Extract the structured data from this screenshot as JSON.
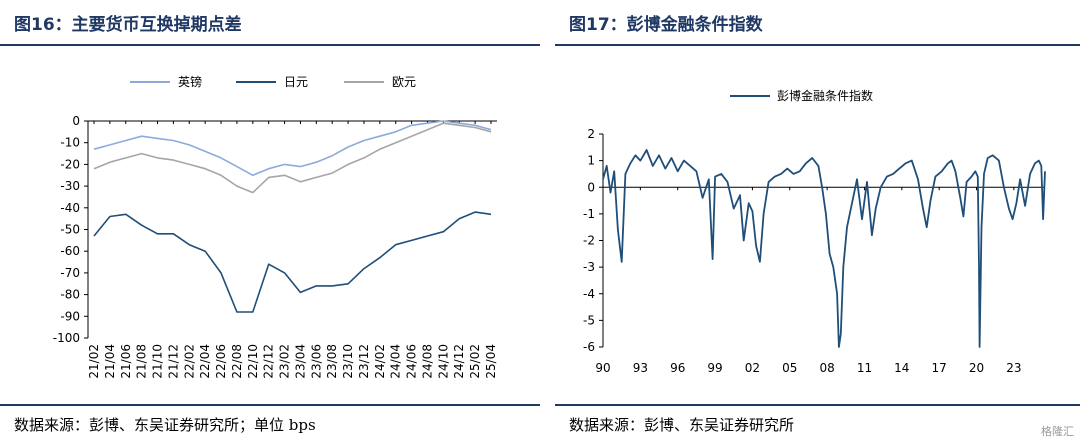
{
  "left_panel": {
    "title": "图16：主要货币互换掉期点差",
    "source": "数据来源：彭博、东吴证券研究所；单位 bps"
  },
  "right_panel": {
    "title": "图17：彭博金融条件指数",
    "source": "数据来源：彭博、东吴证券研究所"
  },
  "watermark": "格隆汇",
  "chart_data": [
    {
      "type": "line",
      "title": "",
      "ylim": [
        -100,
        0
      ],
      "yticks": [
        0,
        -10,
        -20,
        -30,
        -40,
        -50,
        -60,
        -70,
        -80,
        -90,
        -100
      ],
      "x_tick_labels": [
        "21/02",
        "21/04",
        "21/06",
        "21/08",
        "21/10",
        "21/12",
        "22/02",
        "22/04",
        "22/06",
        "22/08",
        "22/10",
        "22/12",
        "23/02",
        "23/04",
        "23/06",
        "23/08",
        "23/10",
        "23/12",
        "24/02",
        "24/04",
        "24/06",
        "24/08",
        "24/10",
        "24/12",
        "25/02",
        "25/04"
      ],
      "legend_position": "top-center",
      "colors": {
        "英镑": "#8eaadb",
        "日元": "#1f4e79",
        "欧元": "#a6a6a6"
      },
      "series": [
        {
          "name": "英镑",
          "values": [
            -13,
            -11,
            -9,
            -7,
            -8,
            -9,
            -11,
            -14,
            -17,
            -21,
            -25,
            -22,
            -20,
            -21,
            -19,
            -16,
            -12,
            -9,
            -7,
            -5,
            -2,
            -1,
            0,
            -1,
            -2,
            -4
          ]
        },
        {
          "name": "日元",
          "values": [
            -53,
            -44,
            -43,
            -48,
            -52,
            -52,
            -57,
            -60,
            -70,
            -88,
            -88,
            -66,
            -70,
            -79,
            -76,
            -76,
            -75,
            -68,
            -63,
            -57,
            -55,
            -53,
            -51,
            -45,
            -42,
            -43
          ]
        },
        {
          "name": "欧元",
          "values": [
            -22,
            -19,
            -17,
            -15,
            -17,
            -18,
            -20,
            -22,
            -25,
            -30,
            -33,
            -26,
            -25,
            -28,
            -26,
            -24,
            -20,
            -17,
            -13,
            -10,
            -7,
            -4,
            -1,
            -2,
            -3,
            -5
          ]
        }
      ]
    },
    {
      "type": "line",
      "title": "",
      "ylim": [
        -6,
        2
      ],
      "yticks": [
        2,
        1,
        0,
        -1,
        -2,
        -3,
        -4,
        -5,
        -6
      ],
      "x_tick_labels": [
        "90",
        "93",
        "96",
        "99",
        "02",
        "05",
        "08",
        "11",
        "14",
        "17",
        "20",
        "23"
      ],
      "xlim": [
        1990,
        2025.5
      ],
      "legend_position": "top-center",
      "colors": {
        "彭博金融条件指数": "#1f4e79"
      },
      "series": [
        {
          "name": "彭博金融条件指数",
          "x": [
            1990.0,
            1990.3,
            1990.6,
            1990.9,
            1991.2,
            1991.5,
            1991.8,
            1992.2,
            1992.6,
            1993.0,
            1993.5,
            1994.0,
            1994.5,
            1995.0,
            1995.5,
            1996.0,
            1996.5,
            1997.0,
            1997.5,
            1998.0,
            1998.5,
            1998.8,
            1999.0,
            1999.5,
            2000.0,
            2000.5,
            2001.0,
            2001.3,
            2001.7,
            2002.0,
            2002.3,
            2002.6,
            2002.9,
            2003.3,
            2003.8,
            2004.3,
            2004.8,
            2005.3,
            2005.8,
            2006.3,
            2006.8,
            2007.3,
            2007.6,
            2007.9,
            2008.2,
            2008.5,
            2008.8,
            2008.95,
            2009.1,
            2009.3,
            2009.6,
            2010.0,
            2010.4,
            2010.8,
            2011.2,
            2011.6,
            2011.9,
            2012.3,
            2012.8,
            2013.3,
            2013.8,
            2014.3,
            2014.8,
            2015.3,
            2015.7,
            2016.0,
            2016.3,
            2016.7,
            2017.2,
            2017.7,
            2018.0,
            2018.3,
            2018.7,
            2018.95,
            2019.2,
            2019.6,
            2019.9,
            2020.1,
            2020.2,
            2020.25,
            2020.4,
            2020.6,
            2020.9,
            2021.3,
            2021.8,
            2022.2,
            2022.6,
            2022.9,
            2023.2,
            2023.5,
            2023.9,
            2024.3,
            2024.7,
            2025.0,
            2025.2,
            2025.35,
            2025.5
          ],
          "values": [
            0.3,
            0.8,
            -0.2,
            0.6,
            -1.6,
            -2.8,
            0.5,
            0.9,
            1.2,
            1.0,
            1.4,
            0.8,
            1.2,
            0.7,
            1.1,
            0.6,
            1.0,
            0.8,
            0.6,
            -0.4,
            0.3,
            -2.7,
            0.4,
            0.5,
            0.2,
            -0.8,
            -0.3,
            -2.0,
            -0.6,
            -0.9,
            -2.2,
            -2.8,
            -1.0,
            0.2,
            0.4,
            0.5,
            0.7,
            0.5,
            0.6,
            0.9,
            1.1,
            0.8,
            0.0,
            -1.0,
            -2.5,
            -3.0,
            -4.0,
            -6.0,
            -5.5,
            -3.0,
            -1.5,
            -0.6,
            0.3,
            -1.2,
            0.2,
            -1.8,
            -0.8,
            0.0,
            0.4,
            0.5,
            0.7,
            0.9,
            1.0,
            0.3,
            -0.8,
            -1.5,
            -0.5,
            0.4,
            0.6,
            0.9,
            1.0,
            0.6,
            -0.4,
            -1.1,
            0.2,
            0.4,
            0.6,
            0.4,
            -3.0,
            -6.0,
            -1.5,
            0.5,
            1.1,
            1.2,
            1.0,
            0.0,
            -0.8,
            -1.2,
            -0.6,
            0.3,
            -0.7,
            0.5,
            0.9,
            1.0,
            0.8,
            -1.2,
            0.6
          ]
        }
      ]
    }
  ]
}
